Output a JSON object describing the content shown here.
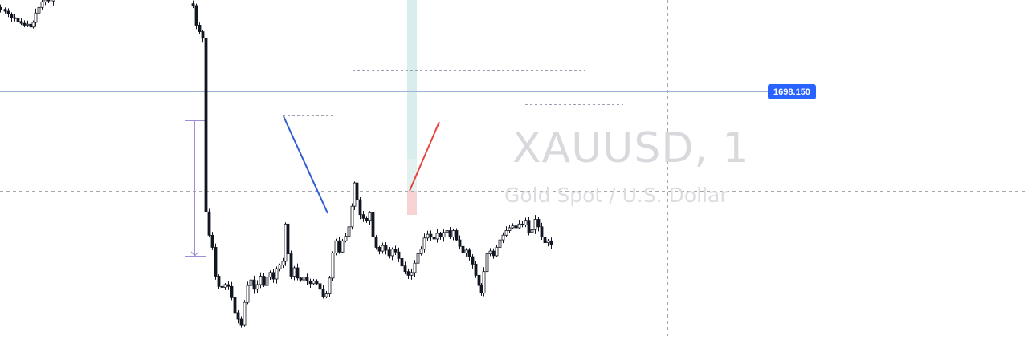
{
  "chart": {
    "symbol_title": "XAUUSD, 1",
    "symbol_description": "Gold Spot / U.S. Dollar",
    "current_price_label": "1698.150",
    "colors": {
      "up": "#ffffff",
      "down": "#131722",
      "wick": "#131722",
      "price_line": "#9bb3d6",
      "price_badge": "#2962ff",
      "blue_trend": "#2f5fd0",
      "red_trend": "#e8443e",
      "range_tool": "#9c8fd8",
      "dotted_levels": "#9aa0b0",
      "crosshair": "#9aa0a6",
      "target_zone": "#d9eded",
      "stop_zone": "#f7d3d4"
    }
  },
  "chart_data": {
    "type": "candlestick",
    "symbol": "XAUUSD",
    "timeframe": "1",
    "title": "XAUUSD, 1",
    "subtitle": "Gold Spot / U.S. Dollar",
    "price_range": [
      1684.0,
      1720.0
    ],
    "last_price": 1698.15,
    "close_path": [
      [
        0,
        1719.0
      ],
      [
        6,
        1718.8
      ],
      [
        10,
        1718.5
      ],
      [
        14,
        1718.1
      ],
      [
        18,
        1718.0
      ],
      [
        22,
        1717.7
      ],
      [
        26,
        1717.5
      ],
      [
        30,
        1717.3
      ],
      [
        34,
        1717.4
      ],
      [
        38,
        1717.1
      ],
      [
        41,
        1717.6
      ],
      [
        44,
        1718.6
      ],
      [
        48,
        1719.2
      ],
      [
        52,
        1719.8
      ],
      [
        56,
        1720.0
      ],
      [
        60,
        1719.9
      ],
      [
        66,
        1720.4
      ],
      [
        70,
        1721.0
      ],
      [
        240,
        1719.4
      ],
      [
        244,
        1717.3
      ],
      [
        248,
        1716.6
      ],
      [
        252,
        1715.9
      ],
      [
        256,
        1697.3
      ],
      [
        260,
        1694.8
      ],
      [
        264,
        1693.5
      ],
      [
        268,
        1690.4
      ],
      [
        272,
        1689.3
      ],
      [
        276,
        1689.2
      ],
      [
        280,
        1689.5
      ],
      [
        284,
        1689.3
      ],
      [
        288,
        1688.1
      ],
      [
        292,
        1686.5
      ],
      [
        296,
        1685.8
      ],
      [
        300,
        1685.2
      ],
      [
        304,
        1687.6
      ],
      [
        308,
        1689.4
      ],
      [
        312,
        1690.0
      ],
      [
        316,
        1689.0
      ],
      [
        320,
        1689.5
      ],
      [
        324,
        1690.4
      ],
      [
        328,
        1689.4
      ],
      [
        332,
        1690.3
      ],
      [
        336,
        1690.8
      ],
      [
        340,
        1690.1
      ],
      [
        344,
        1691.2
      ],
      [
        348,
        1691.6
      ],
      [
        352,
        1692.0
      ],
      [
        355,
        1696.0
      ],
      [
        358,
        1692.8
      ],
      [
        362,
        1690.4
      ],
      [
        366,
        1691.3
      ],
      [
        370,
        1690.2
      ],
      [
        374,
        1690.0
      ],
      [
        378,
        1690.3
      ],
      [
        382,
        1689.9
      ],
      [
        386,
        1689.6
      ],
      [
        390,
        1689.9
      ],
      [
        394,
        1689.6
      ],
      [
        398,
        1689.0
      ],
      [
        402,
        1688.2
      ],
      [
        406,
        1688.5
      ],
      [
        410,
        1690.2
      ],
      [
        414,
        1692.9
      ],
      [
        418,
        1694.2
      ],
      [
        422,
        1693.0
      ],
      [
        426,
        1694.2
      ],
      [
        430,
        1694.7
      ],
      [
        434,
        1695.7
      ],
      [
        438,
        1697.9
      ],
      [
        441,
        1700.4
      ],
      [
        444,
        1698.6
      ],
      [
        448,
        1697.0
      ],
      [
        452,
        1696.6
      ],
      [
        456,
        1696.4
      ],
      [
        460,
        1697.2
      ],
      [
        464,
        1694.6
      ],
      [
        468,
        1693.5
      ],
      [
        472,
        1693.1
      ],
      [
        476,
        1693.7
      ],
      [
        480,
        1693.2
      ],
      [
        484,
        1692.6
      ],
      [
        488,
        1693.3
      ],
      [
        492,
        1693.0
      ],
      [
        496,
        1692.3
      ],
      [
        500,
        1691.5
      ],
      [
        504,
        1690.9
      ],
      [
        508,
        1690.5
      ],
      [
        512,
        1690.8
      ],
      [
        516,
        1691.8
      ],
      [
        520,
        1692.8
      ],
      [
        524,
        1693.3
      ],
      [
        528,
        1694.5
      ],
      [
        532,
        1694.9
      ],
      [
        536,
        1694.6
      ],
      [
        540,
        1694.4
      ],
      [
        544,
        1695.0
      ],
      [
        548,
        1694.6
      ],
      [
        552,
        1695.1
      ],
      [
        556,
        1695.3
      ],
      [
        560,
        1694.6
      ],
      [
        564,
        1695.3
      ],
      [
        568,
        1694.3
      ],
      [
        572,
        1693.6
      ],
      [
        576,
        1692.9
      ],
      [
        580,
        1693.2
      ],
      [
        584,
        1692.5
      ],
      [
        588,
        1691.7
      ],
      [
        592,
        1690.5
      ],
      [
        596,
        1689.4
      ],
      [
        599,
        1688.6
      ],
      [
        602,
        1690.9
      ],
      [
        606,
        1692.8
      ],
      [
        610,
        1693.1
      ],
      [
        614,
        1692.6
      ],
      [
        618,
        1693.5
      ],
      [
        622,
        1694.3
      ],
      [
        626,
        1694.8
      ],
      [
        630,
        1695.3
      ],
      [
        634,
        1695.6
      ],
      [
        638,
        1695.8
      ],
      [
        642,
        1695.6
      ],
      [
        646,
        1696.0
      ],
      [
        650,
        1695.9
      ],
      [
        654,
        1696.4
      ],
      [
        658,
        1695.1
      ],
      [
        662,
        1695.4
      ],
      [
        666,
        1696.5
      ],
      [
        670,
        1695.7
      ],
      [
        674,
        1694.6
      ],
      [
        678,
        1694.0
      ],
      [
        682,
        1694.2
      ],
      [
        686,
        1693.8
      ]
    ]
  }
}
